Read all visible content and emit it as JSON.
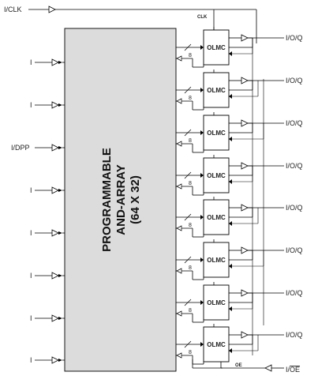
{
  "clock_input": {
    "label": "I/CLK"
  },
  "clock_node_label": "CLK",
  "input_pins": [
    {
      "label": "I"
    },
    {
      "label": "I"
    },
    {
      "label": "I/DPP"
    },
    {
      "label": "I"
    },
    {
      "label": "I"
    },
    {
      "label": "I"
    },
    {
      "label": "I"
    },
    {
      "label": "I"
    }
  ],
  "array": {
    "title_line1": "PROGRAMMABLE",
    "title_line2": "AND-ARRAY",
    "title_line3": "(64 X 32)",
    "fill_color": "#dcdcdc"
  },
  "olmc_cells": [
    {
      "label": "OLMC",
      "bus_width": "8",
      "output_label": "I/O/Q"
    },
    {
      "label": "OLMC",
      "bus_width": "8",
      "output_label": "I/O/Q"
    },
    {
      "label": "OLMC",
      "bus_width": "8",
      "output_label": "I/O/Q"
    },
    {
      "label": "OLMC",
      "bus_width": "8",
      "output_label": "I/O/Q"
    },
    {
      "label": "OLMC",
      "bus_width": "8",
      "output_label": "I/O/Q"
    },
    {
      "label": "OLMC",
      "bus_width": "8",
      "output_label": "I/O/Q"
    },
    {
      "label": "OLMC",
      "bus_width": "8",
      "output_label": "I/O/Q"
    },
    {
      "label": "OLMC",
      "bus_width": "8",
      "output_label": "I/O/Q"
    }
  ],
  "oe_node_label": "OE",
  "oe_input": {
    "label_prefix": "I/",
    "label_overbar": "OE"
  }
}
